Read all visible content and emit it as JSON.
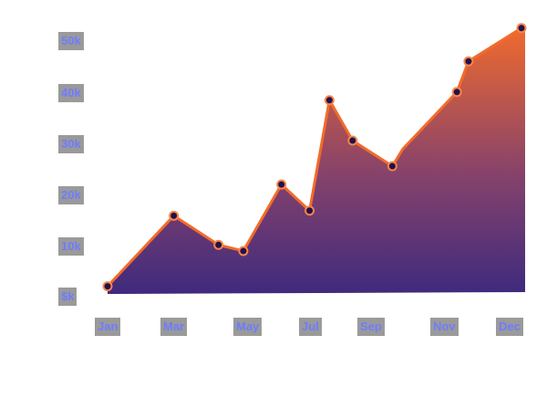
{
  "chart_data": {
    "type": "area",
    "title": "",
    "xlabel": "",
    "ylabel": "",
    "ylim": [
      0,
      50
    ],
    "grid": false,
    "legend": null,
    "y_ticks": [
      "$k",
      "10k",
      "20k",
      "30k",
      "40k",
      "50k"
    ],
    "x_ticks": [
      "Jan",
      "Mar",
      "May",
      "Jul",
      "Sep",
      "Nov",
      "Dec"
    ],
    "series": [
      {
        "name": "value",
        "x": [
          0.0,
          2.0,
          3.35,
          4.1,
          5.25,
          6.1,
          6.7,
          7.4,
          8.6,
          10.55,
          10.9,
          12.5
        ],
        "values": [
          1.5,
          15.3,
          9.6,
          8.4,
          21.4,
          16.3,
          37.9,
          30.0,
          25.0,
          39.5,
          45.5,
          52.0
        ]
      }
    ],
    "colors": {
      "line": "#f26b2a",
      "marker_fill": "#23124a",
      "area_top": "#f06a2e",
      "area_bottom": "#3f2a7e",
      "tick_text": "#6f7cff",
      "tick_bg": "#9a9a9a"
    }
  }
}
